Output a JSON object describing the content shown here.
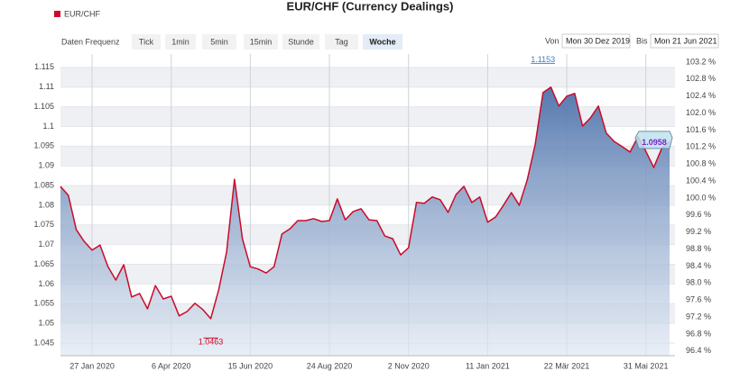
{
  "toolbar": {
    "label": "Daten Frequenz",
    "buttons": [
      {
        "label": "Tick",
        "active": false
      },
      {
        "label": "1min",
        "active": false
      },
      {
        "label": "5min",
        "active": false
      },
      {
        "label": "15min",
        "active": false
      },
      {
        "label": "Stunde",
        "active": false
      },
      {
        "label": "Tag",
        "active": false
      },
      {
        "label": "Woche",
        "active": true
      }
    ]
  },
  "range": {
    "from_label": "Von",
    "from": "Mon 30 Dez 2019",
    "to_label": "Bis",
    "to": "Mon 21 Jun 2021"
  },
  "chart_data": {
    "type": "area",
    "title": "EUR/CHF (Currency Dealings)",
    "x": [
      "2019-12-30",
      "2020-01-06",
      "2020-01-13",
      "2020-01-20",
      "2020-01-27",
      "2020-02-03",
      "2020-02-10",
      "2020-02-17",
      "2020-02-24",
      "2020-03-02",
      "2020-03-09",
      "2020-03-16",
      "2020-03-23",
      "2020-03-30",
      "2020-04-06",
      "2020-04-13",
      "2020-04-20",
      "2020-04-27",
      "2020-05-04",
      "2020-05-11",
      "2020-05-18",
      "2020-05-25",
      "2020-06-01",
      "2020-06-08",
      "2020-06-15",
      "2020-06-22",
      "2020-06-29",
      "2020-07-06",
      "2020-07-13",
      "2020-07-20",
      "2020-07-27",
      "2020-08-03",
      "2020-08-10",
      "2020-08-17",
      "2020-08-24",
      "2020-08-31",
      "2020-09-07",
      "2020-09-14",
      "2020-09-21",
      "2020-09-28",
      "2020-10-05",
      "2020-10-12",
      "2020-10-19",
      "2020-10-26",
      "2020-11-02",
      "2020-11-09",
      "2020-11-16",
      "2020-11-23",
      "2020-11-30",
      "2020-12-07",
      "2020-12-14",
      "2020-12-21",
      "2020-12-28",
      "2021-01-04",
      "2021-01-11",
      "2021-01-18",
      "2021-01-25",
      "2021-02-01",
      "2021-02-08",
      "2021-02-15",
      "2021-02-22",
      "2021-03-01",
      "2021-03-08",
      "2021-03-15",
      "2021-03-22",
      "2021-03-29",
      "2021-04-05",
      "2021-04-12",
      "2021-04-19",
      "2021-04-26",
      "2021-05-03",
      "2021-05-10",
      "2021-05-17",
      "2021-05-24",
      "2021-05-31",
      "2021-06-07",
      "2021-06-14",
      "2021-06-21"
    ],
    "series": [
      {
        "name": "EUR/CHF",
        "color": "#cc0a2a",
        "values": [
          1.0848,
          1.0825,
          1.0738,
          1.0708,
          1.0686,
          1.0699,
          1.0644,
          1.061,
          1.0649,
          1.0567,
          1.0576,
          1.0537,
          1.0596,
          1.0562,
          1.0569,
          1.0519,
          1.053,
          1.0551,
          1.0535,
          1.0512,
          1.0585,
          1.0681,
          1.0866,
          1.0715,
          1.0644,
          1.0638,
          1.0628,
          1.0644,
          1.0727,
          1.074,
          1.0761,
          1.0761,
          1.0766,
          1.0759,
          1.0761,
          1.0816,
          1.0763,
          1.0784,
          1.0791,
          1.0763,
          1.0761,
          1.0722,
          1.0715,
          1.0674,
          1.0692,
          1.0807,
          1.0805,
          1.0821,
          1.0814,
          1.0782,
          1.0827,
          1.0848,
          1.0807,
          1.0821,
          1.0757,
          1.077,
          1.08,
          1.0832,
          1.08,
          1.0864,
          1.0953,
          1.1086,
          1.11,
          1.1052,
          1.1077,
          1.1084,
          1.1001,
          1.1022,
          1.1052,
          1.0983,
          1.0962,
          1.0949,
          1.0935,
          1.0974,
          1.0937,
          1.0896,
          1.0944,
          1.0962
        ]
      }
    ],
    "xlim": [
      "2019-12-30",
      "2021-06-21"
    ],
    "xticks": [
      {
        "value": "2020-01-27",
        "label": "27 Jan 2020"
      },
      {
        "value": "2020-04-06",
        "label": "6 Apr 2020"
      },
      {
        "value": "2020-06-15",
        "label": "15 Jun 2020"
      },
      {
        "value": "2020-08-24",
        "label": "24 Aug 2020"
      },
      {
        "value": "2020-11-02",
        "label": "2 Nov 2020"
      },
      {
        "value": "2021-01-11",
        "label": "11 Jan 2021"
      },
      {
        "value": "2021-03-22",
        "label": "22 Mär 2021"
      },
      {
        "value": "2021-05-31",
        "label": "31 Mai 2021"
      }
    ],
    "ylim": [
      1.0418,
      1.1184
    ],
    "yticks": [
      1.115,
      1.11,
      1.105,
      1.1,
      1.095,
      1.09,
      1.085,
      1.08,
      1.075,
      1.07,
      1.065,
      1.06,
      1.055,
      1.05,
      1.045
    ],
    "y2lim": [
      96.29,
      103.39
    ],
    "y2ticks": [
      {
        "value": 103.2,
        "label": "103.2 %"
      },
      {
        "value": 102.8,
        "label": "102.8 %"
      },
      {
        "value": 102.4,
        "label": "102.4 %"
      },
      {
        "value": 102.0,
        "label": "102.0 %"
      },
      {
        "value": 101.6,
        "label": "101.6 %"
      },
      {
        "value": 101.2,
        "label": "101.2 %"
      },
      {
        "value": 100.8,
        "label": "100.8 %"
      },
      {
        "value": 100.4,
        "label": "100.4 %"
      },
      {
        "value": 100.0,
        "label": "100.0 %"
      },
      {
        "value": 99.6,
        "label": "99.6 %"
      },
      {
        "value": 99.2,
        "label": "99.2 %"
      },
      {
        "value": 98.8,
        "label": "98.8 %"
      },
      {
        "value": 98.4,
        "label": "98.4 %"
      },
      {
        "value": 98.0,
        "label": "98.0 %"
      },
      {
        "value": 97.6,
        "label": "97.6 %"
      },
      {
        "value": 97.2,
        "label": "97.2 %"
      },
      {
        "value": 96.8,
        "label": "96.8 %"
      },
      {
        "value": 96.4,
        "label": "96.4 %"
      }
    ],
    "grid": true,
    "annotations": [
      {
        "x": "2021-03-01",
        "value": 1.1153,
        "color": "#3b7dc4"
      },
      {
        "x": "2020-05-11",
        "value": 1.0463,
        "color": "#cc0a2a"
      },
      {
        "x": "2021-06-21",
        "value": 1.0958,
        "color": "#7a1fd0"
      }
    ]
  }
}
